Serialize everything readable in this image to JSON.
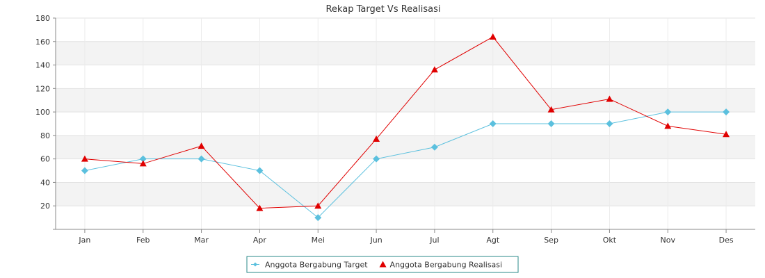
{
  "chart_data": {
    "type": "line",
    "title": "Rekap Target Vs Realisasi",
    "xlabel": "",
    "ylabel": "",
    "categories": [
      "Jan",
      "Feb",
      "Mar",
      "Apr",
      "Mei",
      "Jun",
      "Jul",
      "Agt",
      "Sep",
      "Okt",
      "Nov",
      "Des"
    ],
    "ylim": [
      0,
      180
    ],
    "yticks": [
      20,
      40,
      60,
      80,
      100,
      120,
      140,
      160,
      180
    ],
    "grid": true,
    "legend_position": "bottom-center",
    "series": [
      {
        "name": "Anggota Bergabung Target",
        "values": [
          50,
          60,
          60,
          50,
          10,
          60,
          70,
          90,
          90,
          90,
          100,
          100
        ],
        "color": "#5bc0de",
        "marker": "diamond"
      },
      {
        "name": "Anggota Bergabung Realisasi",
        "values": [
          60,
          56,
          71,
          18,
          20,
          77,
          136,
          164,
          102,
          111,
          88,
          81
        ],
        "color": "#e00000",
        "marker": "triangle"
      }
    ]
  }
}
